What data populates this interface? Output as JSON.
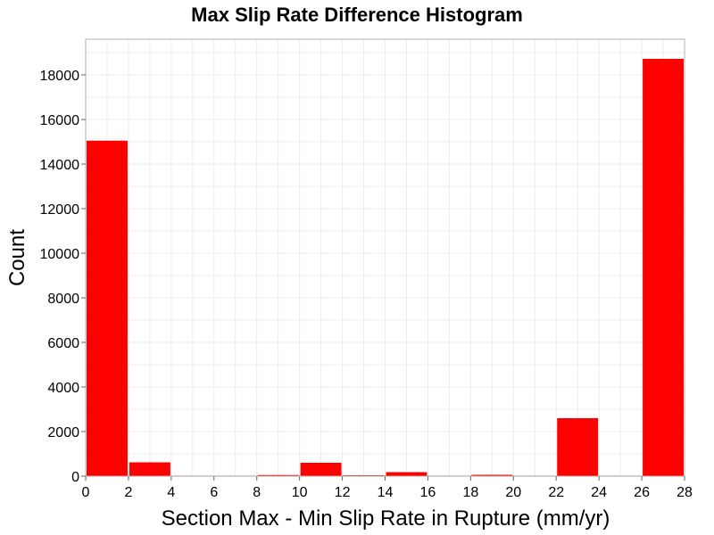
{
  "chart_data": {
    "type": "bar",
    "title": "Max Slip Rate Difference Histogram",
    "xlabel": "Section Max - Min Slip Rate in Rupture (mm/yr)",
    "ylabel": "Count",
    "xlim": [
      0,
      28
    ],
    "ylim": [
      0,
      19600
    ],
    "bin_width": 2,
    "x_ticks": [
      0,
      2,
      4,
      6,
      8,
      10,
      12,
      14,
      16,
      18,
      20,
      22,
      24,
      26,
      28
    ],
    "y_ticks": [
      0,
      2000,
      4000,
      6000,
      8000,
      10000,
      12000,
      14000,
      16000,
      18000
    ],
    "bins": [
      {
        "x0": 0,
        "x1": 2,
        "value": 15050
      },
      {
        "x0": 2,
        "x1": 4,
        "value": 620
      },
      {
        "x0": 4,
        "x1": 6,
        "value": 10
      },
      {
        "x0": 6,
        "x1": 8,
        "value": 5
      },
      {
        "x0": 8,
        "x1": 10,
        "value": 50
      },
      {
        "x0": 10,
        "x1": 12,
        "value": 600
      },
      {
        "x0": 12,
        "x1": 14,
        "value": 40
      },
      {
        "x0": 14,
        "x1": 16,
        "value": 180
      },
      {
        "x0": 16,
        "x1": 18,
        "value": 5
      },
      {
        "x0": 18,
        "x1": 20,
        "value": 60
      },
      {
        "x0": 20,
        "x1": 22,
        "value": 5
      },
      {
        "x0": 22,
        "x1": 24,
        "value": 2600
      },
      {
        "x0": 24,
        "x1": 26,
        "value": 5
      },
      {
        "x0": 26,
        "x1": 28,
        "value": 18720
      }
    ],
    "bar_color": "#ff0000",
    "grid": true,
    "legend": "none"
  }
}
